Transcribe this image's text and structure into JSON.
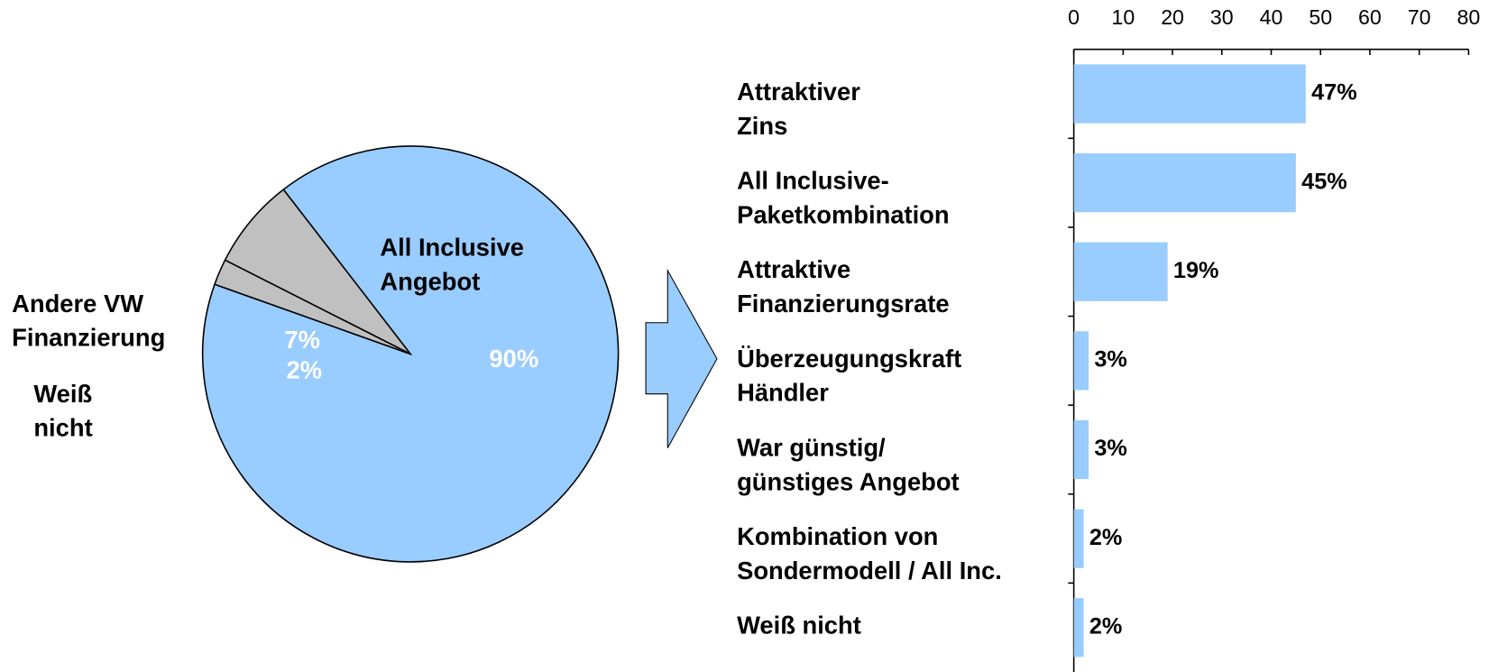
{
  "chart_data": [
    {
      "type": "pie",
      "categories": [
        "All Inclusive\nAngebot",
        "Andere VW\nFinanzierung",
        "Weiß\nnicht"
      ],
      "values": [
        90,
        7,
        2
      ],
      "value_labels": [
        "90%",
        "7%",
        "2%"
      ],
      "colors": [
        "#99ccff",
        "#c0c0c0",
        "#c0c0c0"
      ]
    },
    {
      "type": "hbar",
      "categories": [
        "Attraktiver\nZins",
        "All Inclusive-\nPaketkombination",
        "Attraktive\nFinanzierungsrate",
        "Überzeugungskraft\nHändler",
        "War günstig/\ngünstiges Angebot",
        "Kombination von\nSondermodell / All Inc.",
        "Weiß nicht"
      ],
      "values": [
        47,
        45,
        19,
        3,
        3,
        2,
        2
      ],
      "value_labels": [
        "47%",
        "45%",
        "19%",
        "3%",
        "3%",
        "2%",
        "2%"
      ],
      "color": "#99ccff",
      "xlim": [
        0,
        80
      ],
      "xticks": [
        0,
        10,
        20,
        30,
        40,
        50,
        60,
        70,
        80
      ]
    }
  ]
}
